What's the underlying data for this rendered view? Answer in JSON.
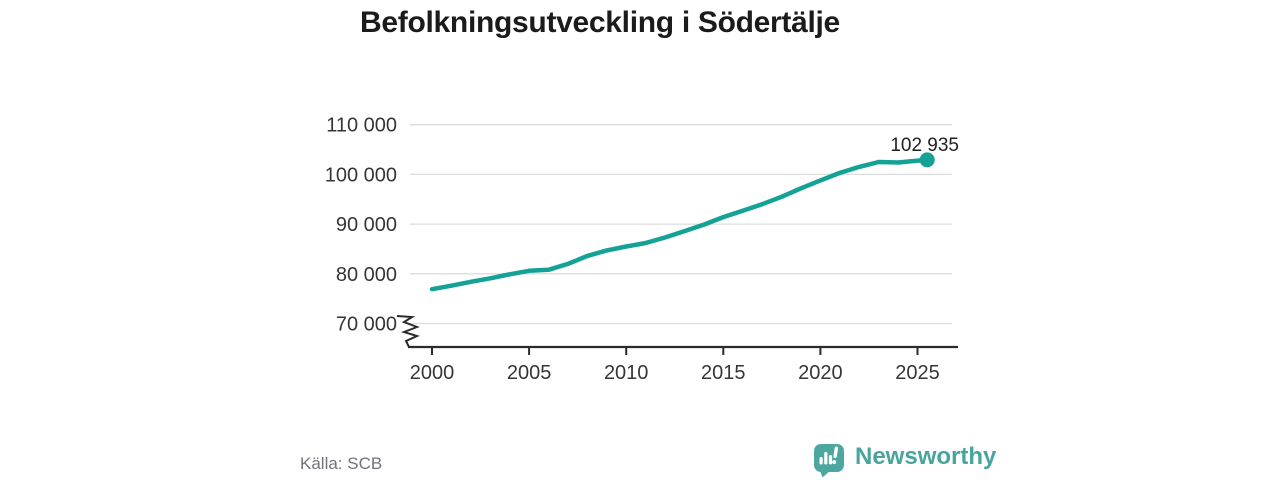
{
  "page": {
    "title": "Befolkningsutveckling i Södertälje",
    "source": "Källa: SCB",
    "brand": {
      "name": "Newsworthy"
    }
  },
  "colors": {
    "line": "#13a295",
    "grid": "#dcdcdc",
    "axis": "#2b2b2b",
    "tick_text": "#363636",
    "title_text": "#1b1b1b",
    "end_label_text": "#222222",
    "source_text": "#72727a",
    "brand_teal": "#48a49d"
  },
  "chart_data": {
    "type": "line",
    "title": "Befolkningsutveckling i Södertälje",
    "xlabel": "",
    "ylabel": "",
    "x": [
      2000,
      2001,
      2002,
      2003,
      2004,
      2005,
      2006,
      2007,
      2008,
      2009,
      2010,
      2011,
      2012,
      2013,
      2014,
      2015,
      2016,
      2017,
      2018,
      2019,
      2020,
      2021,
      2022,
      2023,
      2024,
      2025.5
    ],
    "values": [
      76900,
      77600,
      78400,
      79100,
      79900,
      80600,
      80800,
      82000,
      83600,
      84700,
      85500,
      86200,
      87300,
      88600,
      89900,
      91400,
      92700,
      94000,
      95500,
      97200,
      98800,
      100300,
      101500,
      102500,
      102400,
      102935
    ],
    "end_point": {
      "value": 102935,
      "label": "102 935"
    },
    "y_ticks": [
      {
        "value": 110000,
        "label": "110 000"
      },
      {
        "value": 100000,
        "label": "100 000"
      },
      {
        "value": 90000,
        "label": "90 000"
      },
      {
        "value": 80000,
        "label": "80 000"
      },
      {
        "value": 70000,
        "label": "70 000"
      }
    ],
    "x_ticks": [
      {
        "value": 2000,
        "label": "2000"
      },
      {
        "value": 2005,
        "label": "2005"
      },
      {
        "value": 2010,
        "label": "2010"
      },
      {
        "value": 2015,
        "label": "2015"
      },
      {
        "value": 2020,
        "label": "2020"
      },
      {
        "value": 2025,
        "label": "2025"
      }
    ],
    "ylim": [
      70000,
      110000
    ],
    "xlim": [
      2000,
      2027
    ],
    "grid": "horizontal",
    "legend": "none",
    "y_axis_break": true
  }
}
